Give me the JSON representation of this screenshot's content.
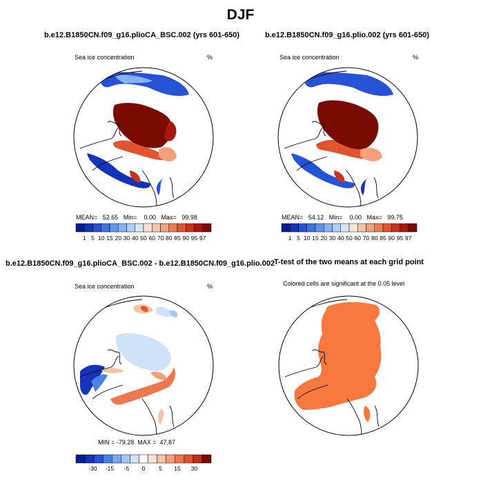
{
  "title": "DJF",
  "panels": [
    {
      "title": "b.e12.B1850CN.f09_g16.plioCA_BSC.002 (yrs 601-650)",
      "left_label": "Sea ice concentration",
      "right_label": "%",
      "stats": "MEAN=   52.65   Min=    0.00   Max=   99.98"
    },
    {
      "title": "b.e12.B1850CN.f09_g16.plio.002 (yrs 601-650)",
      "left_label": "Sea ice concentration",
      "right_label": "%",
      "stats": "MEAN=   54.12   Min=    0.00   Max=   99.75"
    },
    {
      "title": "b.e12.B1850CN.f09_g16.plioCA_BSC.002 - b.e12.B1850CN.f09_g16.plio.002",
      "left_label": "Sea ice concentration",
      "right_label": "%",
      "stats": "MIN = -79.28  MAX =  47.87"
    },
    {
      "title": "T-test of the two means at each grid point",
      "left_label": "Colored cells are significant at the 0.05 level"
    }
  ],
  "colorbar_abs": {
    "labels": [
      "1",
      "5",
      "10",
      "15",
      "20",
      "30",
      "40",
      "50",
      "60",
      "70",
      "80",
      "85",
      "90",
      "95",
      "97"
    ],
    "colors": [
      "#0a1d8f",
      "#1533b8",
      "#2653d6",
      "#3c74e0",
      "#5e95ea",
      "#86b3f0",
      "#b0cff5",
      "#d6e6f7",
      "#f6e3d6",
      "#f6c4a8",
      "#f3a07b",
      "#ec7a52",
      "#e0552f",
      "#c8331c",
      "#a8170d",
      "#7a0a04"
    ]
  },
  "colorbar_diff": {
    "labels": [
      "-30",
      "-15",
      "-5",
      "0",
      "5",
      "15",
      "30"
    ],
    "colors": [
      "#0a1d8f",
      "#1533b8",
      "#2653d6",
      "#4a80e4",
      "#7aa8ee",
      "#a8c8f4",
      "#d0e2f7",
      "#ffffff",
      "#fbe3d6",
      "#f6c2a6",
      "#f29e78",
      "#ea7950",
      "#dc522d",
      "#c0301b",
      "#7a0a04"
    ]
  },
  "ttest_color": "#f7793f",
  "land_line_color": "#000000"
}
